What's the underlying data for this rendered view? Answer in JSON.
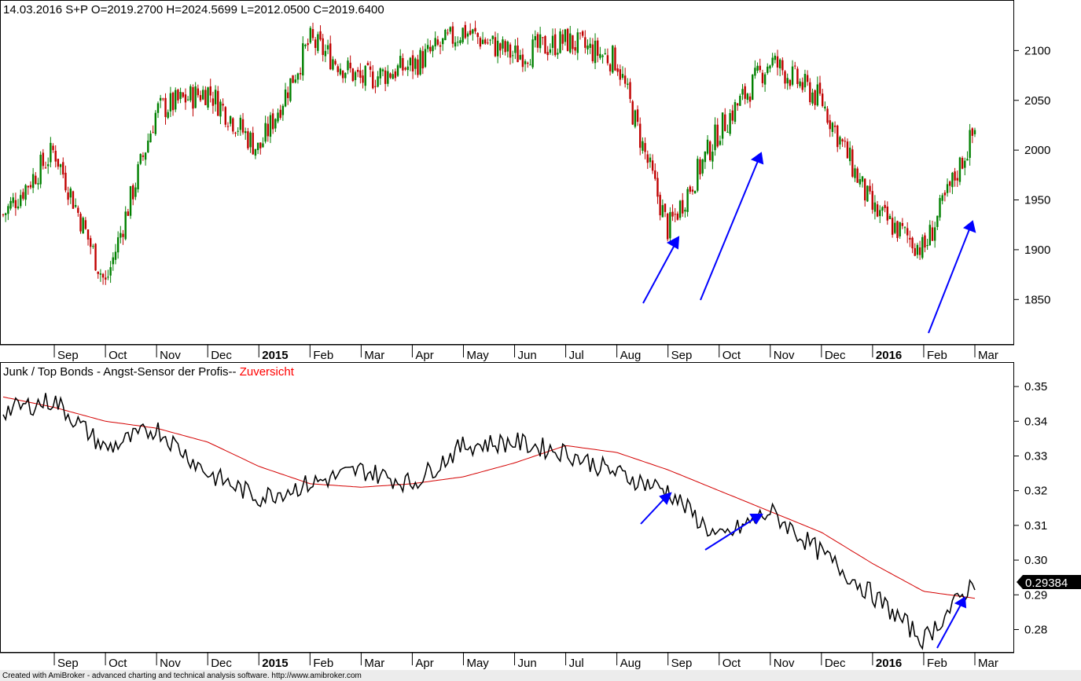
{
  "window": {
    "footer": "Created with AmiBroker - advanced charting and technical analysis software. http://www.amibroker.com"
  },
  "colors": {
    "background": "#ffffff",
    "up_candle": "#008000",
    "down_candle": "#c00000",
    "indicator_line": "#000000",
    "moving_average": "#d40000",
    "arrows": "#0000ff",
    "zuversicht": "#ff0000",
    "value_badge": "#000000"
  },
  "price_panel": {
    "header": "14.03.2016 S+P  O=2019.2700  H=2024.5699  L=2012.0500  C=2019.6400"
  },
  "indicator_panel": {
    "title": "Junk / Top Bonds -  Angst-Sensor der Profis-- ",
    "title_accent": "Zuversicht",
    "last_value": "0.29384"
  },
  "time_axis": [
    "Sep",
    "Oct",
    "Nov",
    "Dec",
    "2015",
    "Feb",
    "Mar",
    "Apr",
    "May",
    "Jun",
    "Jul",
    "Aug",
    "Sep",
    "Oct",
    "Nov",
    "Dec",
    "2016",
    "Feb",
    "Mar"
  ],
  "chart_data": [
    {
      "type": "candlestick",
      "series": [
        {
          "name": "S+P"
        }
      ],
      "x": [
        "2014-08",
        "2014-09",
        "2014-10",
        "2014-11",
        "2014-12",
        "2015-01",
        "2015-02",
        "2015-03",
        "2015-04",
        "2015-05",
        "2015-06",
        "2015-07",
        "2015-08",
        "2015-09",
        "2015-10",
        "2015-11",
        "2015-12",
        "2016-01",
        "2016-02",
        "2016-03"
      ],
      "values": [
        1935,
        2000,
        1865,
        2040,
        2060,
        2000,
        2110,
        2070,
        2085,
        2120,
        2095,
        2110,
        2090,
        1920,
        2020,
        2090,
        2050,
        1940,
        1900,
        2020
      ],
      "ylim": [
        1810,
        2135
      ],
      "yticks": [
        1850,
        1900,
        1950,
        2000,
        2050,
        2100
      ],
      "last": {
        "open": 2019.27,
        "high": 2024.5699,
        "low": 2012.05,
        "close": 2019.64
      }
    },
    {
      "type": "line",
      "series": [
        {
          "name": "Junk / Top Bonds",
          "x": [
            "2014-08",
            "2014-09",
            "2014-10",
            "2014-11",
            "2014-12",
            "2015-01",
            "2015-02",
            "2015-03",
            "2015-04",
            "2015-05",
            "2015-06",
            "2015-07",
            "2015-08",
            "2015-09",
            "2015-10",
            "2015-11",
            "2015-12",
            "2016-01",
            "2016-02",
            "2016-03"
          ],
          "values": [
            0.343,
            0.346,
            0.332,
            0.338,
            0.325,
            0.318,
            0.322,
            0.326,
            0.322,
            0.333,
            0.334,
            0.331,
            0.325,
            0.32,
            0.306,
            0.314,
            0.302,
            0.29,
            0.277,
            0.294
          ]
        },
        {
          "name": "Zuversicht",
          "x": [
            "2014-08",
            "2014-09",
            "2014-10",
            "2014-11",
            "2014-12",
            "2015-01",
            "2015-02",
            "2015-03",
            "2015-04",
            "2015-05",
            "2015-06",
            "2015-07",
            "2015-08",
            "2015-09",
            "2015-10",
            "2015-11",
            "2015-12",
            "2016-01",
            "2016-02",
            "2016-03"
          ],
          "values": [
            0.347,
            0.344,
            0.34,
            0.338,
            0.334,
            0.327,
            0.322,
            0.321,
            0.322,
            0.324,
            0.328,
            0.333,
            0.331,
            0.326,
            0.32,
            0.314,
            0.308,
            0.299,
            0.291,
            0.289
          ]
        }
      ],
      "ylim": [
        0.274,
        0.355
      ],
      "yticks": [
        "0.28",
        "0.29",
        "0.30",
        "0.31",
        "0.32",
        "0.33",
        "0.34",
        "0.35"
      ]
    }
  ]
}
